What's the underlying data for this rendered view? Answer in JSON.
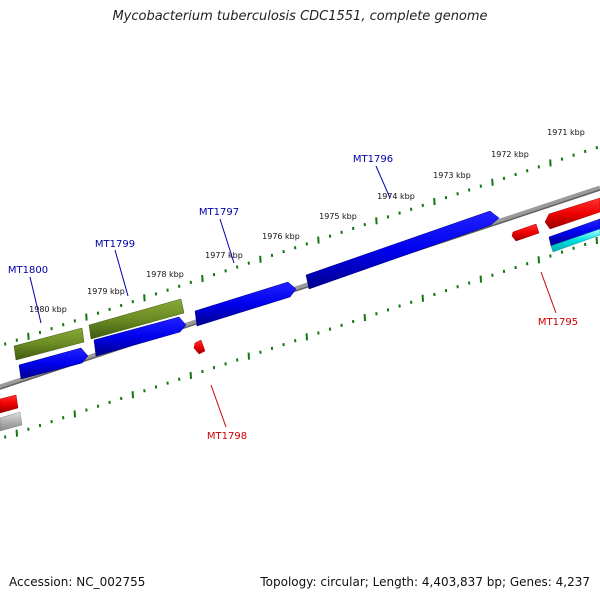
{
  "title": "Mycobacterium tuberculosis CDC1551, complete genome",
  "footer": {
    "accession": "Accession: NC_002755",
    "topology": "Topology: circular; Length: 4,403,837 bp; Genes: 4,237"
  },
  "colors": {
    "forward_gene": "#0000ee",
    "reverse_gene": "#ee0000",
    "rna_gene": "#6b8c23",
    "other_gene": "#00dddd",
    "grey_gene": "#aaaaaa",
    "backbone": "#808080",
    "tick": "#117711",
    "forward_label": "#0000aa",
    "reverse_label": "#cc0000"
  },
  "tick_labels": [
    "1971 kbp",
    "1972 kbp",
    "1973 kbp",
    "1974 kbp",
    "1975 kbp",
    "1976 kbp",
    "1977 kbp",
    "1978 kbp",
    "1979 kbp",
    "1980 kbp"
  ],
  "gene_labels": {
    "top": [
      "MT1796",
      "MT1797",
      "MT1799",
      "MT1800"
    ],
    "bottom": [
      "MT1795",
      "MT1798"
    ]
  }
}
